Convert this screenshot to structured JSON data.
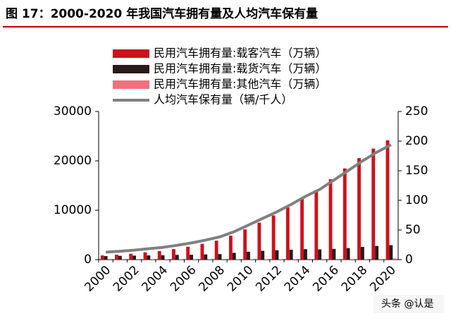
{
  "chart_data": {
    "type": "bar",
    "title": "图 17：2000-2020 年我国汽车拥有量及人均汽车保有量",
    "watermark": "头条 @认是",
    "categories": [
      "2000",
      null,
      "2002",
      null,
      "2004",
      null,
      "2006",
      null,
      "2008",
      null,
      "2010",
      null,
      "2012",
      null,
      "2014",
      null,
      "2016",
      null,
      "2018",
      null,
      "2020"
    ],
    "series": [
      {
        "name": "民用汽车拥有量:载客汽车（万辆）",
        "color": "#d0101b",
        "type": "bar",
        "values": [
          854,
          994,
          1202,
          1479,
          1736,
          2132,
          2619,
          3196,
          3839,
          4845,
          6124,
          7479,
          8943,
          10561,
          12327,
          14099,
          16278,
          18470,
          20555,
          22474,
          24166
        ]
      },
      {
        "name": "民用汽车拥有量:载货汽车（万辆）",
        "color": "#2a1a1a",
        "type": "bar",
        "values": [
          716,
          765,
          812,
          853,
          893,
          956,
          986,
          1054,
          1126,
          1369,
          1597,
          1788,
          1895,
          2010,
          2125,
          2067,
          2172,
          2338,
          2570,
          2769,
          2922
        ]
      },
      {
        "name": "民用汽车拥有量:其他汽车（万辆）",
        "color": "#f0707c",
        "type": "bar",
        "values": [
          39,
          43,
          39,
          51,
          65,
          71,
          92,
          108,
          135,
          67,
          81,
          89,
          95,
          99,
          146,
          118,
          125,
          99,
          106,
          133,
          252
        ]
      },
      {
        "name": "人均汽车保有量（辆/千人）",
        "color": "#808080",
        "type": "line",
        "axis": "y2",
        "values": [
          12.7,
          14.1,
          16.0,
          18.4,
          20.7,
          24.2,
          28.1,
          33.0,
          38.4,
          47.1,
          58.2,
          69.5,
          80.7,
          93.1,
          106.7,
          118.4,
          134.3,
          150.4,
          166.5,
          181.3,
          193.6
        ]
      }
    ],
    "ylim": [
      0,
      30000
    ],
    "yticks": [
      0,
      10000,
      20000,
      30000
    ],
    "y2lim": [
      0,
      250
    ],
    "y2ticks": [
      0,
      50,
      100,
      150,
      200,
      250
    ],
    "grid": false
  }
}
